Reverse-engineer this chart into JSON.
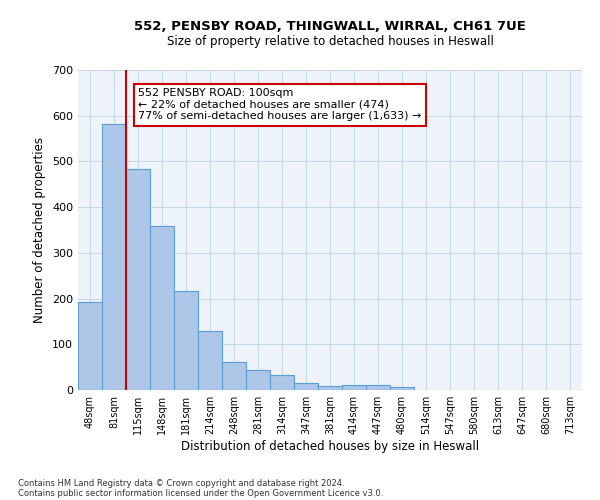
{
  "title_line1": "552, PENSBY ROAD, THINGWALL, WIRRAL, CH61 7UE",
  "title_line2": "Size of property relative to detached houses in Heswall",
  "xlabel": "Distribution of detached houses by size in Heswall",
  "ylabel": "Number of detached properties",
  "categories": [
    "48sqm",
    "81sqm",
    "115sqm",
    "148sqm",
    "181sqm",
    "214sqm",
    "248sqm",
    "281sqm",
    "314sqm",
    "347sqm",
    "381sqm",
    "414sqm",
    "447sqm",
    "480sqm",
    "514sqm",
    "547sqm",
    "580sqm",
    "613sqm",
    "647sqm",
    "680sqm",
    "713sqm"
  ],
  "values": [
    193,
    581,
    484,
    358,
    217,
    130,
    62,
    44,
    33,
    16,
    8,
    10,
    11,
    6,
    0,
    0,
    0,
    0,
    0,
    0,
    0
  ],
  "bar_color": "#aec6e8",
  "bar_edge_color": "#5a9fd4",
  "grid_color": "#c8d4e8",
  "bg_color": "#eef3fa",
  "vline_color": "#cc0000",
  "annotation_text": "552 PENSBY ROAD: 100sqm\n← 22% of detached houses are smaller (474)\n77% of semi-detached houses are larger (1,633) →",
  "annotation_box_color": "#ffffff",
  "annotation_box_edge": "#cc0000",
  "footer_line1": "Contains HM Land Registry data © Crown copyright and database right 2024.",
  "footer_line2": "Contains public sector information licensed under the Open Government Licence v3.0.",
  "ylim": [
    0,
    700
  ],
  "yticks": [
    0,
    100,
    200,
    300,
    400,
    500,
    600,
    700
  ]
}
